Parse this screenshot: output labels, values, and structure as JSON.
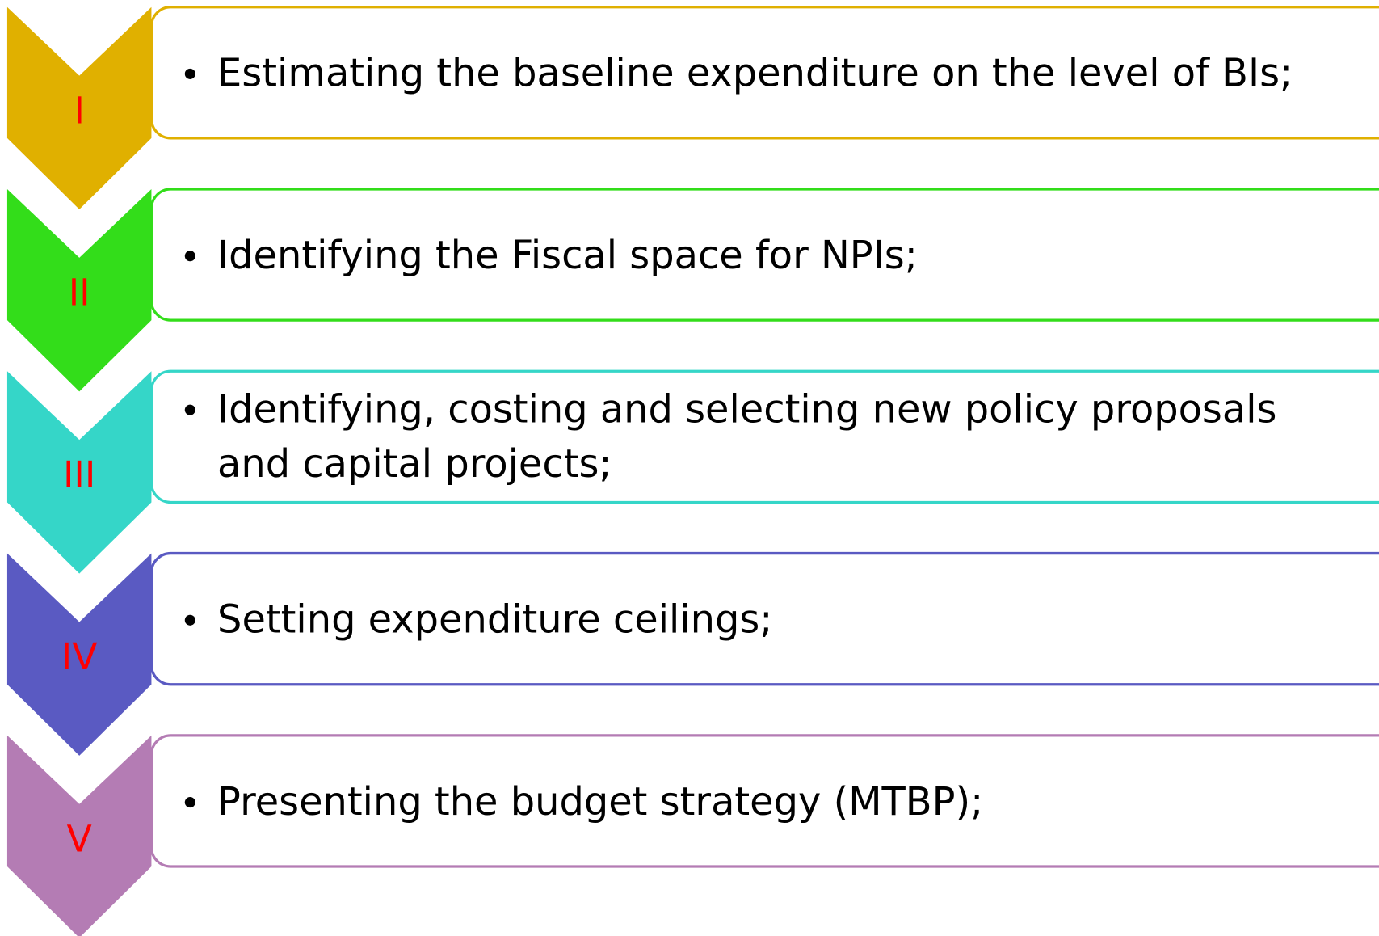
{
  "steps": [
    {
      "numeral": "I",
      "color": "#e0b000",
      "lines": [
        "Estimating the baseline expenditure on the level of BIs;"
      ]
    },
    {
      "numeral": "II",
      "color": "#33dd1a",
      "lines": [
        "Identifying the Fiscal space for NPIs;"
      ]
    },
    {
      "numeral": "III",
      "color": "#35d6c8",
      "lines": [
        "Identifying, costing and selecting new policy proposals",
        "and capital projects;"
      ]
    },
    {
      "numeral": "IV",
      "color": "#5a5ac2",
      "lines": [
        "Setting expenditure ceilings;"
      ]
    },
    {
      "numeral": "V",
      "color": "#b47cb4",
      "lines": [
        "Presenting the budget strategy (MTBP);"
      ]
    }
  ]
}
